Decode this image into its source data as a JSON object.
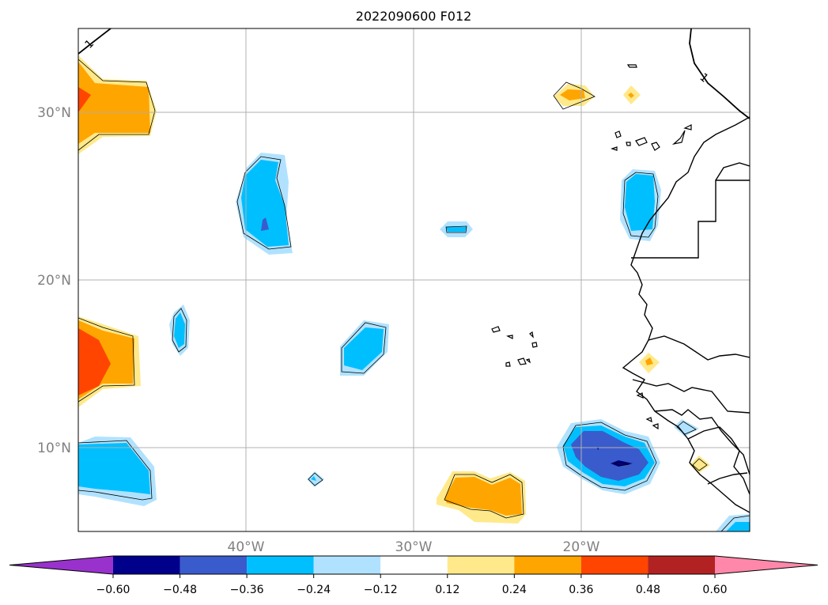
{
  "title": "2022090600 F012",
  "map": {
    "lat_labels": [
      "30°N",
      "20°N",
      "10°N"
    ],
    "lon_labels": [
      "40°W",
      "30°W",
      "20°W"
    ],
    "contour_labels": [
      "1",
      "1"
    ]
  },
  "colorbar": {
    "ticks": [
      "−0.60",
      "−0.48",
      "−0.36",
      "−0.24",
      "−0.12",
      "0.12",
      "0.24",
      "0.36",
      "0.48",
      "0.60"
    ],
    "colors": [
      "#9932cc",
      "#00008b",
      "#3a5bcc",
      "#00bfff",
      "#b0e2ff",
      "#ffffff",
      "#ffe98a",
      "#ffa500",
      "#ff4500",
      "#b22222",
      "#ff88aa"
    ]
  }
}
